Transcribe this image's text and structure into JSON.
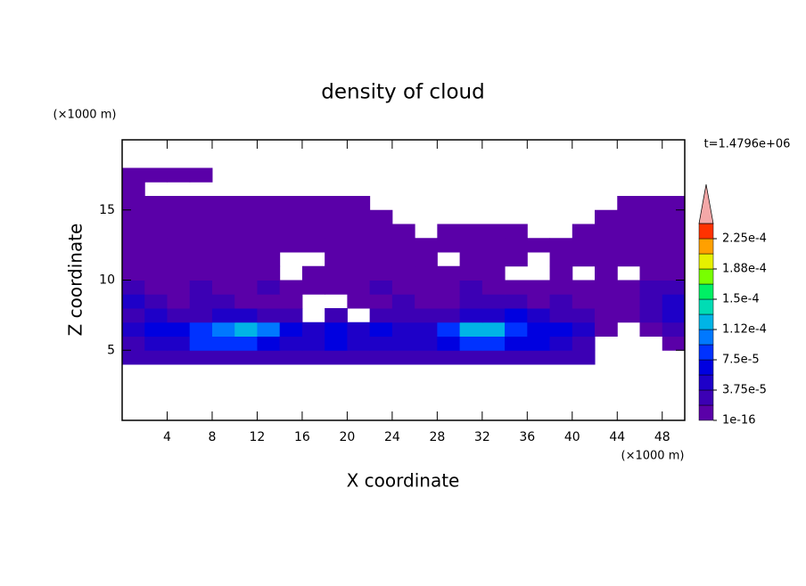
{
  "chart_data": {
    "type": "contour",
    "title": "density of cloud",
    "xlabel": "X coordinate",
    "ylabel": "Z coordinate",
    "x_unit": "(×1000 m)",
    "y_unit": "(×1000 m)",
    "time_label": "t=1.4796e+06",
    "xlim": [
      0,
      50
    ],
    "ylim": [
      0,
      20
    ],
    "xticks": [
      4,
      8,
      12,
      16,
      20,
      24,
      28,
      32,
      36,
      40,
      44,
      48
    ],
    "yticks": [
      5,
      10,
      15
    ],
    "x": [
      1,
      3,
      5,
      7,
      9,
      11,
      13,
      15,
      17,
      19,
      21,
      23,
      25,
      27,
      29,
      31,
      33,
      35,
      37,
      39,
      41,
      43,
      45,
      47,
      49
    ],
    "z_coords": [
      4.5,
      5.5,
      6.5,
      7.5,
      8.5,
      9.5,
      10.5,
      11.5,
      12.5,
      13.5,
      14.5,
      15.5,
      16.5,
      17.5
    ],
    "z": [
      [
        2.5e-05,
        2.5e-05,
        2.5e-05,
        2.5e-05,
        2.5e-05,
        2.5e-05,
        2.5e-05,
        2.5e-05,
        2.5e-05,
        2.5e-05,
        2.5e-05,
        2.5e-05,
        2.5e-05,
        2.5e-05,
        2.5e-05,
        2.5e-05,
        2.5e-05,
        2.5e-05,
        2.5e-05,
        2.5e-05,
        2.5e-05,
        null,
        null,
        null,
        null
      ],
      [
        2.5e-05,
        4e-05,
        4e-05,
        8e-05,
        8e-05,
        8e-05,
        6e-05,
        4e-05,
        4e-05,
        6e-05,
        4e-05,
        4e-05,
        4e-05,
        4e-05,
        6e-05,
        8e-05,
        8e-05,
        6e-05,
        6e-05,
        4e-05,
        2.5e-05,
        null,
        null,
        null,
        5e-06
      ],
      [
        4e-05,
        6e-05,
        6e-05,
        8e-05,
        0.0001,
        0.00012,
        0.0001,
        6e-05,
        4e-05,
        6e-05,
        4e-05,
        6e-05,
        4e-05,
        4e-05,
        8e-05,
        0.00012,
        0.00012,
        8e-05,
        6e-05,
        6e-05,
        4e-05,
        5e-06,
        null,
        5e-06,
        2.5e-05
      ],
      [
        2.5e-05,
        4e-05,
        2.5e-05,
        2.5e-05,
        4e-05,
        4e-05,
        2.5e-05,
        2.5e-05,
        null,
        2.5e-05,
        null,
        2.5e-05,
        2.5e-05,
        2.5e-05,
        2.5e-05,
        4e-05,
        4e-05,
        6e-05,
        4e-05,
        2.5e-05,
        2.5e-05,
        5e-06,
        5e-06,
        2.5e-05,
        4e-05
      ],
      [
        4e-05,
        2.5e-05,
        5e-06,
        2.5e-05,
        2.5e-05,
        5e-06,
        5e-06,
        5e-06,
        null,
        null,
        5e-06,
        5e-06,
        2.5e-05,
        5e-06,
        5e-06,
        2.5e-05,
        2.5e-05,
        2.5e-05,
        5e-06,
        2.5e-05,
        5e-06,
        5e-06,
        5e-06,
        2.5e-05,
        4e-05
      ],
      [
        2.5e-05,
        5e-06,
        5e-06,
        2.5e-05,
        5e-06,
        5e-06,
        2.5e-05,
        5e-06,
        5e-06,
        5e-06,
        5e-06,
        2.5e-05,
        5e-06,
        5e-06,
        5e-06,
        2.5e-05,
        5e-06,
        5e-06,
        5e-06,
        5e-06,
        5e-06,
        5e-06,
        5e-06,
        2.5e-05,
        2.5e-05
      ],
      [
        5e-06,
        5e-06,
        5e-06,
        5e-06,
        5e-06,
        5e-06,
        5e-06,
        null,
        5e-06,
        5e-06,
        5e-06,
        5e-06,
        5e-06,
        5e-06,
        5e-06,
        5e-06,
        5e-06,
        null,
        null,
        5e-06,
        null,
        5e-06,
        null,
        5e-06,
        5e-06
      ],
      [
        5e-06,
        5e-06,
        5e-06,
        5e-06,
        5e-06,
        5e-06,
        5e-06,
        null,
        null,
        5e-06,
        5e-06,
        5e-06,
        5e-06,
        5e-06,
        null,
        5e-06,
        5e-06,
        5e-06,
        null,
        5e-06,
        5e-06,
        5e-06,
        5e-06,
        5e-06,
        5e-06
      ],
      [
        5e-06,
        5e-06,
        5e-06,
        5e-06,
        5e-06,
        5e-06,
        5e-06,
        5e-06,
        5e-06,
        5e-06,
        5e-06,
        5e-06,
        5e-06,
        5e-06,
        5e-06,
        5e-06,
        5e-06,
        5e-06,
        5e-06,
        5e-06,
        5e-06,
        5e-06,
        5e-06,
        5e-06,
        5e-06
      ],
      [
        5e-06,
        5e-06,
        5e-06,
        5e-06,
        5e-06,
        5e-06,
        5e-06,
        5e-06,
        5e-06,
        5e-06,
        5e-06,
        5e-06,
        5e-06,
        null,
        5e-06,
        5e-06,
        5e-06,
        5e-06,
        null,
        null,
        5e-06,
        5e-06,
        5e-06,
        5e-06,
        5e-06
      ],
      [
        5e-06,
        5e-06,
        5e-06,
        5e-06,
        5e-06,
        5e-06,
        5e-06,
        5e-06,
        5e-06,
        5e-06,
        5e-06,
        5e-06,
        null,
        null,
        null,
        null,
        null,
        null,
        null,
        null,
        null,
        5e-06,
        5e-06,
        5e-06,
        5e-06
      ],
      [
        5e-06,
        5e-06,
        5e-06,
        5e-06,
        5e-06,
        5e-06,
        5e-06,
        5e-06,
        5e-06,
        5e-06,
        5e-06,
        null,
        null,
        null,
        null,
        null,
        null,
        null,
        null,
        null,
        null,
        null,
        5e-06,
        5e-06,
        5e-06
      ],
      [
        5e-06,
        null,
        null,
        null,
        null,
        null,
        null,
        null,
        null,
        null,
        null,
        null,
        null,
        null,
        null,
        null,
        null,
        null,
        null,
        null,
        null,
        null,
        null,
        null,
        null
      ],
      [
        5e-06,
        5e-06,
        5e-06,
        5e-06,
        null,
        null,
        null,
        null,
        null,
        null,
        null,
        null,
        null,
        null,
        null,
        null,
        null,
        null,
        null,
        null,
        null,
        null,
        null,
        null,
        null
      ]
    ],
    "levels": [
      1e-16,
      1.875e-05,
      3.75e-05,
      5.625e-05,
      7.5e-05,
      9.375e-05,
      0.0001125,
      0.00013125,
      0.00015,
      0.00016875,
      0.0001875,
      0.00020625,
      0.000225,
      0.00024375
    ],
    "colors": [
      "#5a00a8",
      "#3c00b4",
      "#1e00c8",
      "#0000e0",
      "#0032ff",
      "#0078ff",
      "#00b4e6",
      "#00dcb4",
      "#00f064",
      "#78ff00",
      "#e6f000",
      "#ffa000",
      "#ff3200"
    ],
    "extend_color": "#f4a8a8",
    "colorbar_ticks": [
      1e-16,
      {
        "value": 3.75e-05,
        "label": "3.75e-5"
      },
      {
        "value": 7.5e-05,
        "label": "7.5e-5"
      },
      {
        "value": 0.0001125,
        "label": "1.12e-4"
      },
      {
        "value": 0.00015,
        "label": "1.5e-4"
      },
      {
        "value": 0.0001875,
        "label": "1.88e-4"
      },
      {
        "value": 0.000225,
        "label": "2.25e-4"
      }
    ]
  }
}
